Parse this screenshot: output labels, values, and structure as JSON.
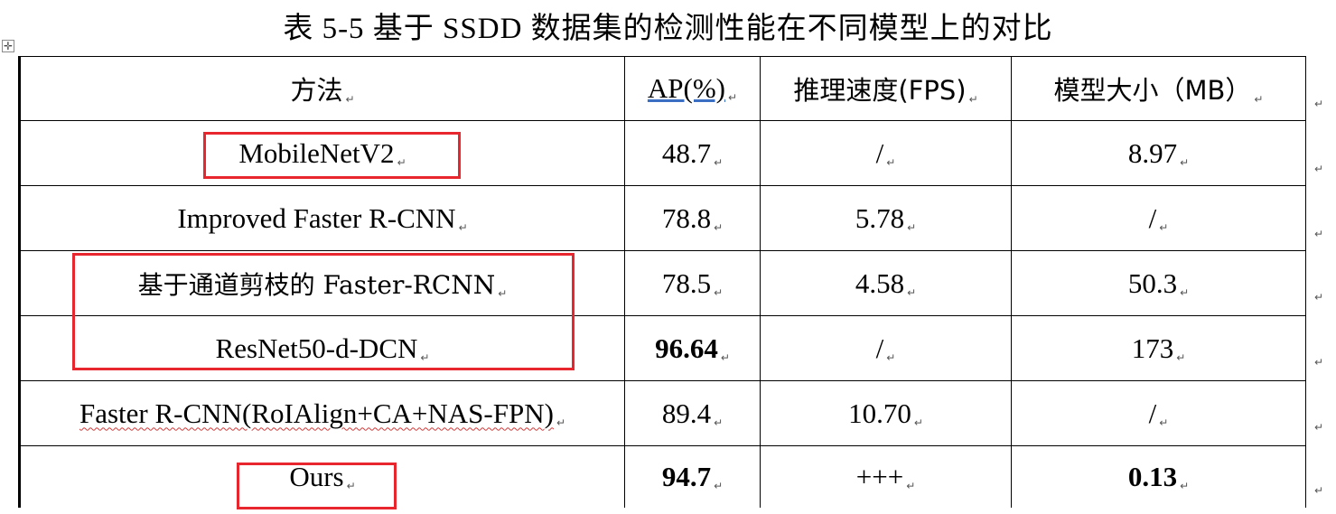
{
  "caption": "表 5-5 基于 SSDD 数据集的检测性能在不同模型上的对比",
  "table": {
    "headers": [
      "方法",
      "AP(%)",
      "推理速度(FPS)",
      "模型大小（MB）"
    ],
    "rows": [
      {
        "method": "MobileNetV2",
        "ap": "48.7",
        "fps": "/",
        "size": "8.97",
        "ap_bold": false,
        "size_bold": false
      },
      {
        "method": "Improved Faster R-CNN",
        "ap": "78.8",
        "fps": "5.78",
        "size": "/",
        "ap_bold": false,
        "size_bold": false
      },
      {
        "method": "基于通道剪枝的 Faster-RCNN",
        "ap": "78.5",
        "fps": "4.58",
        "size": "50.3",
        "ap_bold": false,
        "size_bold": false
      },
      {
        "method": "ResNet50-d-DCN",
        "ap": "96.64",
        "fps": "/",
        "size": "173",
        "ap_bold": true,
        "size_bold": false
      },
      {
        "method": "Faster R-CNN(RoIAlign+CA+NAS-FPN)",
        "ap": "89.4",
        "fps": "10.70",
        "size": "/",
        "ap_bold": false,
        "size_bold": false
      },
      {
        "method": "Ours",
        "ap": "94.7",
        "fps": "+++",
        "size": "0.13",
        "ap_bold": true,
        "size_bold": true
      }
    ]
  },
  "highlight_color": "#e8262d",
  "icons": {
    "move_handle": "move-handle-icon",
    "paragraph_mark": "paragraph-mark-icon"
  }
}
